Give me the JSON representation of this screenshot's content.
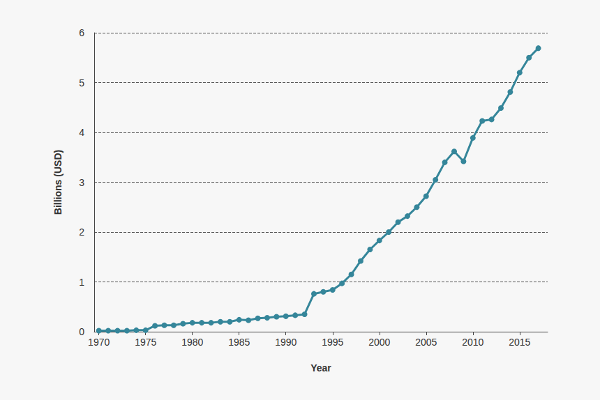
{
  "chart_data": {
    "type": "line",
    "x_label": "Year",
    "y_label": "Billions (USD)",
    "x": [
      1970,
      1971,
      1972,
      1973,
      1974,
      1975,
      1976,
      1977,
      1978,
      1979,
      1980,
      1981,
      1982,
      1983,
      1984,
      1985,
      1986,
      1987,
      1988,
      1989,
      1990,
      1991,
      1992,
      1993,
      1994,
      1995,
      1996,
      1997,
      1998,
      1999,
      2000,
      2001,
      2002,
      2003,
      2004,
      2005,
      2006,
      2007,
      2008,
      2009,
      2010,
      2011,
      2012,
      2013,
      2014,
      2015,
      2016,
      2017
    ],
    "values": [
      0.02,
      0.02,
      0.02,
      0.02,
      0.03,
      0.03,
      0.12,
      0.13,
      0.13,
      0.16,
      0.18,
      0.18,
      0.18,
      0.2,
      0.2,
      0.24,
      0.23,
      0.27,
      0.28,
      0.3,
      0.31,
      0.33,
      0.35,
      0.76,
      0.8,
      0.84,
      0.97,
      1.15,
      1.42,
      1.65,
      1.83,
      2.0,
      2.2,
      2.32,
      2.5,
      2.72,
      3.05,
      3.4,
      3.62,
      3.42,
      3.89,
      4.23,
      4.26,
      4.49,
      4.81,
      5.2,
      5.5,
      5.69
    ],
    "color": "#35869a",
    "marker": "circle",
    "line_style": "solid",
    "xlim": [
      1969.5,
      2018
    ],
    "xticks": [
      1970,
      1975,
      1980,
      1985,
      1990,
      1995,
      2000,
      2005,
      2010,
      2015
    ],
    "ylim": [
      0,
      6
    ],
    "yticks": [
      0,
      1,
      2,
      3,
      4,
      5,
      6
    ],
    "grid": true
  }
}
